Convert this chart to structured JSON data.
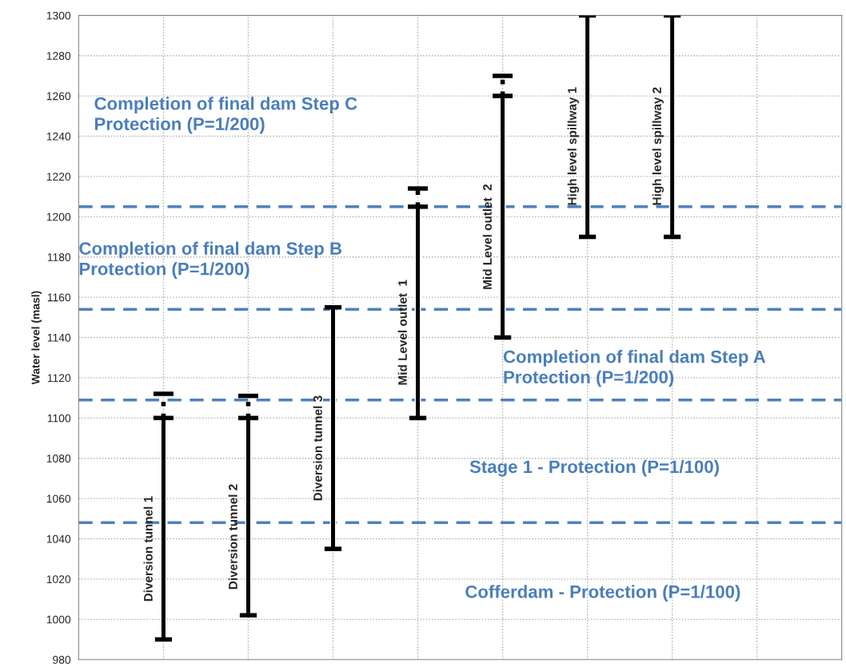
{
  "chart_data": {
    "type": "bar",
    "ylabel": "Water level (masl)",
    "categories": [
      "Diversion tunnel 1",
      "Diversion tunnel 2",
      "Diversion tunnel 3",
      "Mid Level outlet  1",
      "Mid Level outlet  2",
      "High level spillway 1",
      "High level spillway 2"
    ],
    "base": [
      990,
      1002,
      1035,
      1100,
      1140,
      1190,
      1190
    ],
    "values": [
      110,
      98,
      120,
      105,
      120,
      110,
      110
    ],
    "errors": [
      [
        1100,
        1112
      ],
      [
        1100,
        1111
      ],
      null,
      [
        1205,
        1214
      ],
      [
        1260,
        1270
      ],
      null,
      null
    ],
    "color": "#000000",
    "ylim": [
      980,
      1300
    ],
    "yticks": [
      980,
      1000,
      1020,
      1040,
      1060,
      1080,
      1100,
      1120,
      1140,
      1160,
      1180,
      1200,
      1220,
      1240,
      1260,
      1280,
      1300
    ],
    "grid": true,
    "tick_labels": "y",
    "ref_lines": [
      {
        "axis": "y",
        "value": 1048,
        "color": "#4f81bd",
        "line_style": "dashed"
      },
      {
        "axis": "y",
        "value": 1109,
        "color": "#4f81bd",
        "line_style": "dashed"
      },
      {
        "axis": "y",
        "value": 1154,
        "color": "#4f81bd",
        "line_style": "dashed"
      },
      {
        "axis": "y",
        "value": 1205,
        "color": "#4f81bd",
        "line_style": "dashed"
      }
    ],
    "annotations": [
      "Cofferdam - Protection (P=1/100)",
      "Stage 1 - Protection (P=1/100)",
      "Completion of final dam Step A\nProtection (P=1/200)",
      "Completion of final dam Step B\nProtection (P=1/200)",
      "Completion of final dam Step C\nProtection (P=1/200)"
    ]
  }
}
